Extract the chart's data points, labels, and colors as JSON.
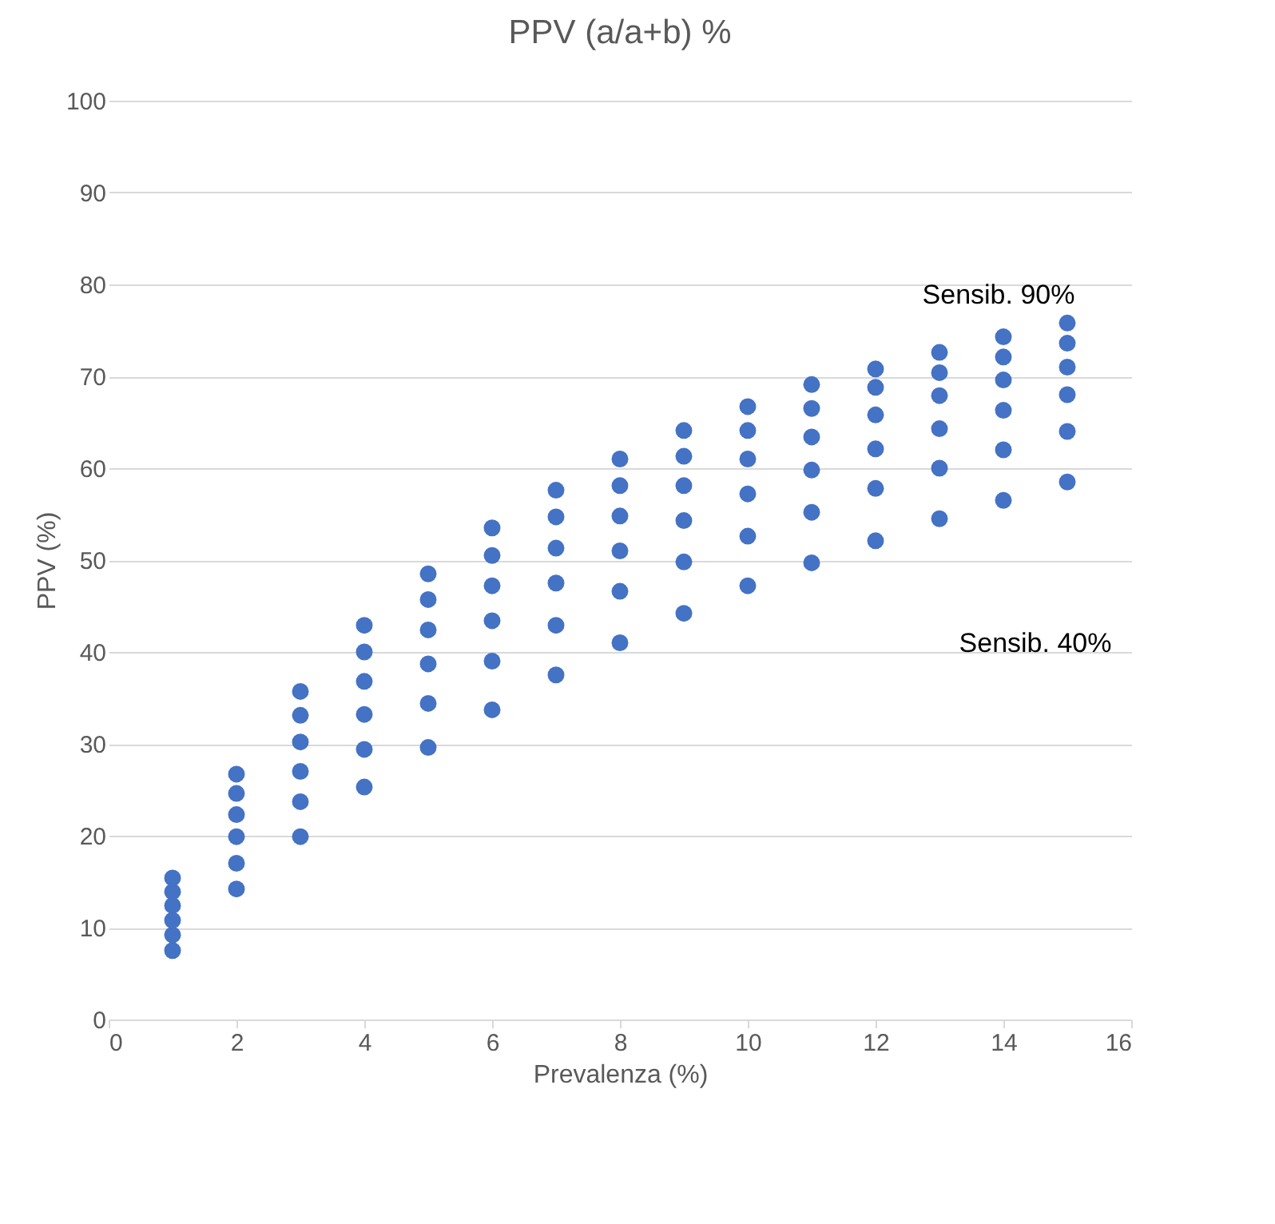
{
  "chart_data": {
    "type": "scatter",
    "title": "PPV (a/a+b) %",
    "xlabel": "Prevalenza (%)",
    "ylabel": "PPV (%)",
    "x": [
      1,
      1,
      1,
      1,
      1,
      1,
      2,
      2,
      2,
      2,
      2,
      2,
      3,
      3,
      3,
      3,
      3,
      3,
      4,
      4,
      4,
      4,
      4,
      4,
      5,
      5,
      5,
      5,
      5,
      5,
      6,
      6,
      6,
      6,
      6,
      6,
      7,
      7,
      7,
      7,
      7,
      7,
      8,
      8,
      8,
      8,
      8,
      8,
      9,
      9,
      9,
      9,
      9,
      9,
      10,
      10,
      10,
      10,
      10,
      10,
      11,
      11,
      11,
      11,
      11,
      11,
      12,
      12,
      12,
      12,
      12,
      12,
      13,
      13,
      13,
      13,
      13,
      13,
      14,
      14,
      14,
      14,
      14,
      14,
      15,
      15,
      15,
      15,
      15,
      15
    ],
    "series": [
      {
        "color": "#4472c4",
        "values": [
          7.5,
          9.2,
          10.8,
          12.4,
          13.9,
          15.4,
          14.2,
          17,
          19.9,
          22.3,
          24.6,
          26.7,
          19.9,
          23.7,
          27,
          30.2,
          33.1,
          35.7,
          25.3,
          29.4,
          33.2,
          36.8,
          40,
          42.9,
          29.6,
          34.4,
          38.7,
          42.4,
          45.7,
          48.5,
          33.7,
          39,
          43.4,
          47.2,
          50.5,
          53.5,
          37.5,
          42.9,
          47.5,
          51.3,
          54.7,
          57.6,
          41,
          46.6,
          51,
          54.8,
          58.1,
          61,
          44.2,
          49.8,
          54.3,
          58.1,
          61.3,
          64.1,
          47.2,
          52.6,
          57.2,
          61,
          64.1,
          66.7,
          49.7,
          55.2,
          59.8,
          63.4,
          66.5,
          69.1,
          52.1,
          57.8,
          62.1,
          65.8,
          68.8,
          70.8,
          54.5,
          60,
          64.3,
          67.9,
          70.4,
          72.6,
          56.5,
          62,
          66.3,
          69.6,
          72.1,
          74.3,
          58.5,
          64,
          68,
          71,
          73.6,
          75.8
        ]
      }
    ],
    "annotations": [
      "Sensib. 90%",
      "Sensib. 40%"
    ],
    "xlim": [
      0,
      16
    ],
    "xticks": [
      0,
      2,
      4,
      6,
      8,
      10,
      12,
      14,
      16
    ],
    "ylim": [
      0,
      100
    ],
    "yticks": [
      0,
      10,
      20,
      30,
      40,
      50,
      60,
      70,
      80,
      90,
      100
    ],
    "grid": "y",
    "marker": "circle",
    "legend": false
  }
}
